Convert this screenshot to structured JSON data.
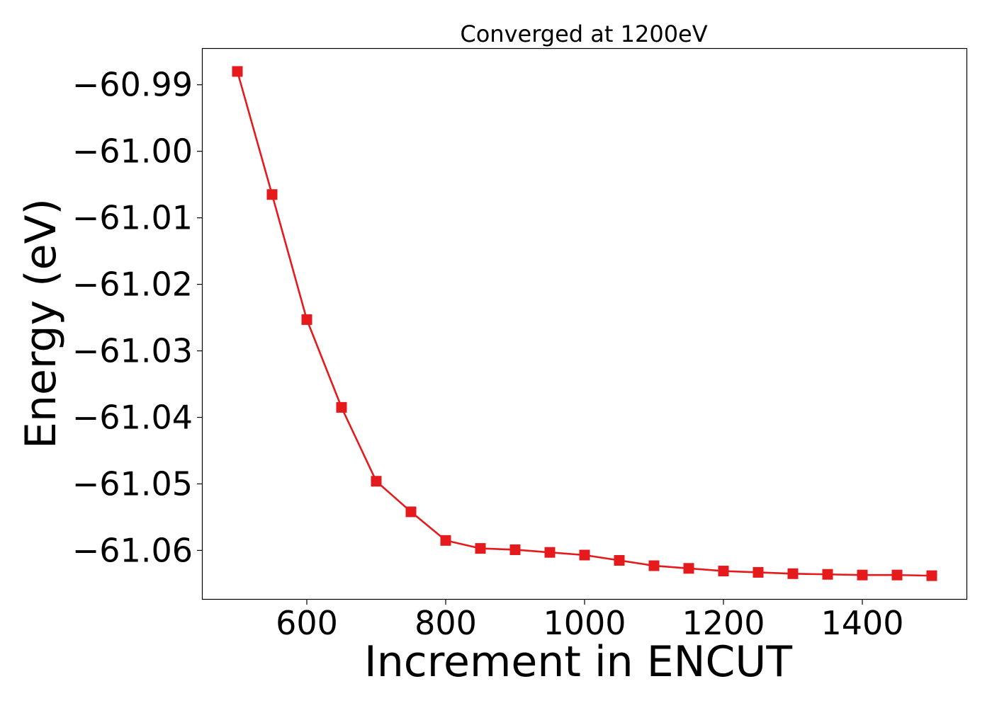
{
  "chart_data": {
    "type": "line",
    "title": "Converged at 1200eV",
    "xlabel": "Increment in ENCUT",
    "ylabel": "Energy (eV)",
    "x": [
      500,
      550,
      600,
      650,
      700,
      750,
      800,
      850,
      900,
      950,
      1000,
      1050,
      1100,
      1150,
      1200,
      1250,
      1300,
      1350,
      1400,
      1450,
      1500
    ],
    "series": [
      {
        "values": [
          -60.988,
          -61.0065,
          -61.0253,
          -61.0385,
          -61.0496,
          -61.0542,
          -61.0585,
          -61.0597,
          -61.0599,
          -61.0603,
          -61.0607,
          -61.0615,
          -61.0623,
          -61.0627,
          -61.0631,
          -61.0633,
          -61.0635,
          -61.0636,
          -61.0637,
          -61.0637,
          -61.0638
        ],
        "color": "#e41a1c",
        "marker": "square"
      }
    ],
    "xlim": [
      450,
      1550
    ],
    "ylim": [
      -61.0673,
      -60.9846
    ],
    "xticks": [
      600,
      800,
      1000,
      1200,
      1400
    ],
    "xtick_labels": [
      "600",
      "800",
      "1000",
      "1200",
      "1400"
    ],
    "yticks": [
      -60.99,
      -61.0,
      -61.01,
      -61.02,
      -61.03,
      -61.04,
      -61.05,
      -61.06
    ],
    "ytick_labels": [
      "−60.99",
      "−61.00",
      "−61.01",
      "−61.02",
      "−61.03",
      "−61.04",
      "−61.05",
      "−61.06"
    ],
    "grid": false,
    "legend": "none"
  }
}
